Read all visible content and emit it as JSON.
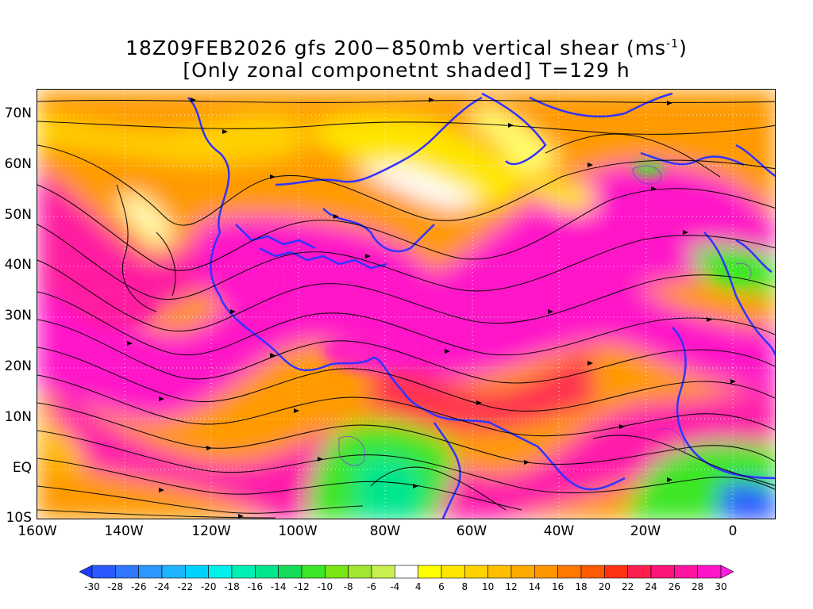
{
  "title": {
    "line1_prefix": "18Z09FEB2026 gfs 200−850mb vertical shear (ms",
    "line1_sup": "-1",
    "line1_suffix": ")",
    "line2": "[Only zonal componetnt shaded] T=129 h"
  },
  "map": {
    "lat_labels": [
      "70N",
      "60N",
      "50N",
      "40N",
      "30N",
      "20N",
      "10N",
      "EQ",
      "10S"
    ],
    "lat_values": [
      70,
      60,
      50,
      40,
      30,
      20,
      10,
      0,
      -10
    ],
    "lon_labels": [
      "160W",
      "140W",
      "120W",
      "100W",
      "80W",
      "60W",
      "40W",
      "20W",
      "0"
    ],
    "lon_values": [
      -160,
      -140,
      -120,
      -100,
      -80,
      -60,
      -40,
      -20,
      0
    ],
    "lon_range": [
      -160,
      10
    ],
    "lat_range": [
      -10,
      75
    ],
    "grid": "dotted"
  },
  "colorbar": {
    "labels": [
      "-30",
      "-28",
      "-26",
      "-24",
      "-22",
      "-20",
      "-18",
      "-16",
      "-14",
      "-12",
      "-10",
      "-8",
      "-6",
      "-4",
      "4",
      "6",
      "8",
      "10",
      "12",
      "14",
      "16",
      "18",
      "20",
      "22",
      "24",
      "26",
      "28",
      "30"
    ],
    "colors": [
      "#1e3cff",
      "#2a5aff",
      "#2f78ff",
      "#2e96ff",
      "#1fb4ff",
      "#00d2ff",
      "#00f0ea",
      "#00f0b4",
      "#00e68c",
      "#14dc5a",
      "#3ce628",
      "#78e614",
      "#a0e632",
      "#c8f050",
      "#ffffff",
      "#ffff00",
      "#ffe600",
      "#ffd200",
      "#ffbe00",
      "#ffaa00",
      "#ff9600",
      "#ff7800",
      "#ff5a00",
      "#ff3214",
      "#ff1e50",
      "#ff1478",
      "#ff14a0",
      "#ff14c8",
      "#ff1edc"
    ]
  }
}
